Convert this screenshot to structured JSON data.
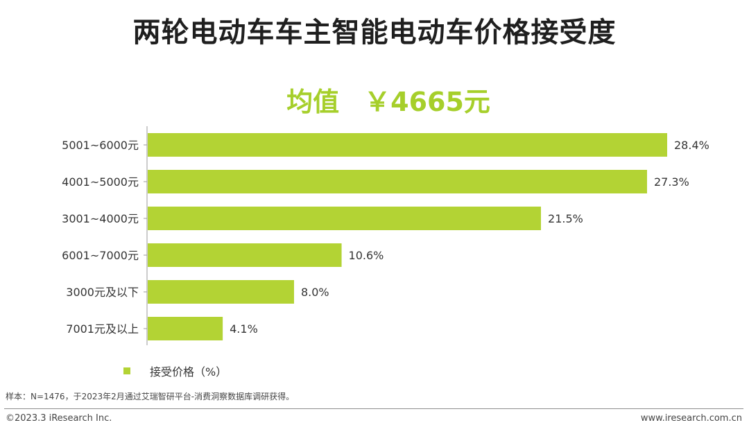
{
  "title": "两轮电动车车主智能电动车价格接受度",
  "average": {
    "label": "均值",
    "value": "￥4665元"
  },
  "colors": {
    "bar": "#b3d334",
    "accent": "#a6cf2b"
  },
  "legend": {
    "label": "接受价格（%）"
  },
  "note": "样本：N=1476，于2023年2月通过艾瑞智研平台-消费洞察数据库调研获得。",
  "footer": {
    "left": "©2023.3 iResearch Inc.",
    "right": "www.iresearch.com.cn"
  },
  "chart_data": {
    "type": "bar",
    "orientation": "horizontal",
    "title": "两轮电动车车主智能电动车价格接受度",
    "categories": [
      "5001~6000元",
      "4001~5000元",
      "3001~4000元",
      "6001~7000元",
      "3000元及以下",
      "7001元及以上"
    ],
    "series": [
      {
        "name": "接受价格（%）",
        "values": [
          28.4,
          27.3,
          21.5,
          10.6,
          8.0,
          4.1
        ]
      }
    ],
    "value_labels": [
      "28.4%",
      "27.3%",
      "21.5%",
      "10.6%",
      "8.0%",
      "4.1%"
    ],
    "xlim": [
      0,
      28.4
    ],
    "grid": false,
    "legend_position": "bottom-left"
  }
}
